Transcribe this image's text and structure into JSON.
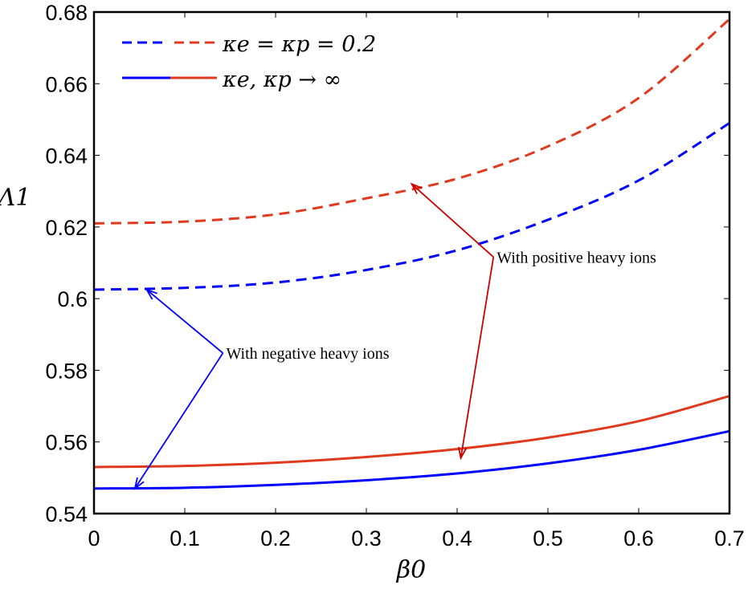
{
  "chart_data": {
    "type": "line",
    "xlabel": "β0",
    "ylabel": "Λ1",
    "xlim": [
      0,
      0.7
    ],
    "ylim": [
      0.54,
      0.68
    ],
    "xticks": [
      "0",
      "0.1",
      "0.2",
      "0.3",
      "0.4",
      "0.5",
      "0.6",
      "0.7"
    ],
    "yticks": [
      "0.54",
      "0.56",
      "0.58",
      "0.6",
      "0.62",
      "0.64",
      "0.66",
      "0.68"
    ],
    "grid": false,
    "legend_position": "top-left",
    "legend": [
      {
        "label": "κe = κp = 0.2",
        "style": "dashed",
        "colors": [
          "#0000ff",
          "#e03a1e"
        ]
      },
      {
        "label": "κe, κp → ∞",
        "style": "solid",
        "colors": [
          "#0000ff",
          "#e03a1e"
        ]
      }
    ],
    "series": [
      {
        "color": "#e03a1e",
        "style": "dashed",
        "x": [
          0,
          0.1,
          0.2,
          0.3,
          0.4,
          0.5,
          0.6,
          0.7
        ],
        "y": [
          0.621,
          0.6215,
          0.6235,
          0.628,
          0.6335,
          0.6425,
          0.656,
          0.678
        ]
      },
      {
        "color": "#0000ff",
        "style": "dashed",
        "x": [
          0,
          0.1,
          0.2,
          0.3,
          0.4,
          0.5,
          0.6,
          0.7
        ],
        "y": [
          0.6025,
          0.603,
          0.6045,
          0.608,
          0.6135,
          0.622,
          0.633,
          0.649
        ]
      },
      {
        "color": "#e03a1e",
        "style": "solid",
        "x": [
          0,
          0.1,
          0.2,
          0.3,
          0.4,
          0.5,
          0.6,
          0.7
        ],
        "y": [
          0.553,
          0.5533,
          0.5542,
          0.5558,
          0.558,
          0.5612,
          0.5658,
          0.5728
        ]
      },
      {
        "color": "#0000ff",
        "style": "solid",
        "x": [
          0,
          0.1,
          0.2,
          0.3,
          0.4,
          0.5,
          0.6,
          0.7
        ],
        "y": [
          0.547,
          0.5472,
          0.548,
          0.5493,
          0.5512,
          0.554,
          0.5578,
          0.563
        ]
      }
    ],
    "annotations": [
      {
        "text": "With positive heavy ions",
        "color": "#cc0000",
        "anchor": [
          0.44,
          0.6116
        ],
        "targets": [
          [
            0.35,
            0.632
          ],
          [
            0.404,
            0.5555
          ]
        ]
      },
      {
        "text": "With negative heavy ions",
        "color": "#0000ff",
        "anchor": [
          0.142,
          0.5848
        ],
        "targets": [
          [
            0.058,
            0.6025
          ],
          [
            0.045,
            0.547
          ]
        ]
      }
    ]
  }
}
